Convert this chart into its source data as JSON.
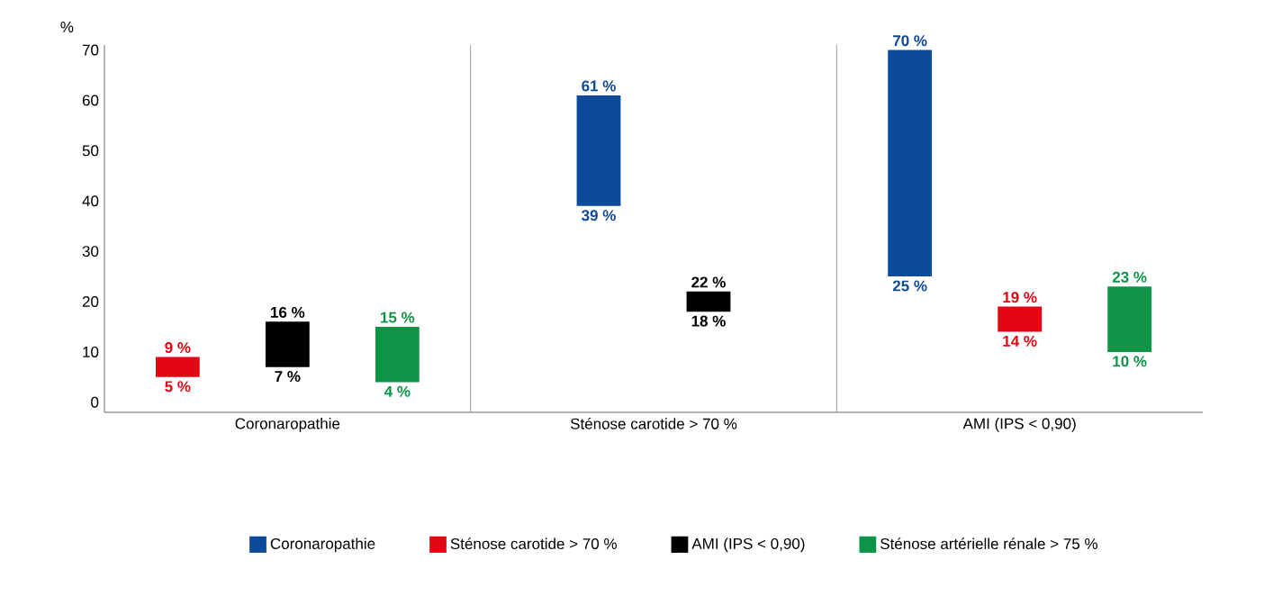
{
  "chart_data": {
    "type": "bar",
    "ylabel": "%",
    "categories": [
      "Coronaropathie",
      "Sténose carotide > 70 %",
      "AMI (IPS < 0,90)"
    ],
    "series": [
      {
        "name": "Coronaropathie",
        "color": "#0d4a9c",
        "base": [
          null,
          39,
          25
        ],
        "values": [
          null,
          22,
          45
        ]
      },
      {
        "name": "Sténose carotide > 70 %",
        "color": "#e30613",
        "base": [
          5,
          null,
          14
        ],
        "values": [
          4,
          null,
          5
        ]
      },
      {
        "name": "AMI (IPS < 0,90)",
        "color": "#000000",
        "base": [
          7,
          18,
          null
        ],
        "values": [
          9,
          4,
          null
        ]
      },
      {
        "name": "Sténose artérielle rénale > 75 %",
        "color": "#0e9447",
        "base": [
          4,
          null,
          10
        ],
        "values": [
          11,
          null,
          13
        ]
      }
    ],
    "ylim": [
      -2,
      71
    ],
    "yticks": [
      0,
      10,
      20,
      30,
      40,
      50,
      60,
      70
    ],
    "grid": false,
    "legend": "bottom",
    "annotations": [
      "9 %",
      "5 %",
      "16 %",
      "7 %",
      "15 %",
      "4 %",
      "61 %",
      "39 %",
      "22 %",
      "18 %",
      "70 %",
      "25 %",
      "19 %",
      "14 %",
      "23 %",
      "10 %"
    ]
  }
}
